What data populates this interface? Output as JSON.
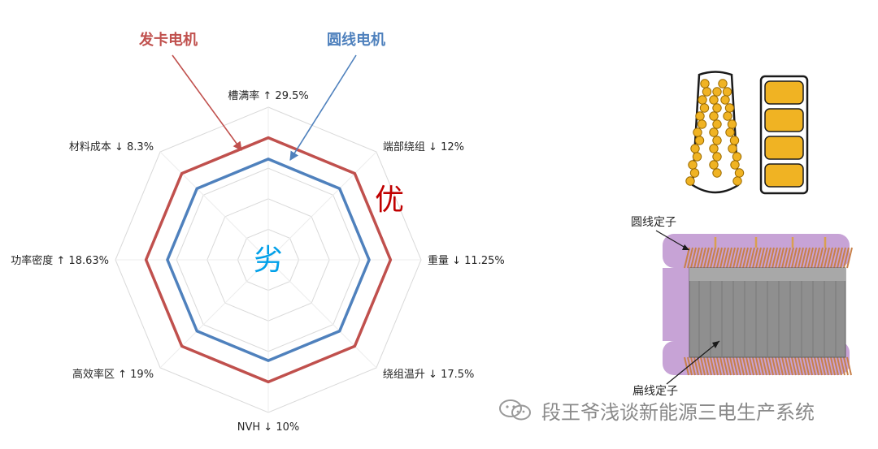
{
  "chart_data": {
    "type": "radar",
    "axes": [
      {
        "label": "槽满率 ↑ 29.5%"
      },
      {
        "label": "端部绕组 ↓ 12%"
      },
      {
        "label": "重量 ↓ 11.25%"
      },
      {
        "label": "绕组温升 ↓ 17.5%"
      },
      {
        "label": "NVH ↓ 10%"
      },
      {
        "label": "高效率区 ↑ 19%"
      },
      {
        "label": "功率密度 ↑ 18.63%"
      },
      {
        "label": "材料成本 ↓ 8.3%"
      }
    ],
    "rings": 5,
    "range": [
      0,
      5
    ],
    "series": [
      {
        "name": "发卡电机",
        "color": "#c0504d",
        "values": [
          4.0,
          4.0,
          4.0,
          4.0,
          4.0,
          4.0,
          4.0,
          4.0
        ]
      },
      {
        "name": "圆线电机",
        "color": "#4f81bd",
        "values": [
          3.3,
          3.3,
          3.3,
          3.3,
          3.3,
          3.3,
          3.3,
          3.3
        ]
      }
    ],
    "annotations": {
      "outer": "优",
      "inner": "劣"
    },
    "colors": {
      "outer": "#c00000",
      "inner": "#00a0e9",
      "grid": "#d9d9d9",
      "label": "#262626"
    }
  },
  "illustration": {
    "round_wire_stator_label": "圆线定子",
    "flat_wire_stator_label": "扁线定子",
    "colors": {
      "wire": "#f0b323",
      "slot_outline": "#1a1a1a",
      "winding_end": "#c7a3d6",
      "core": "#8f8f8f",
      "copper": "#c8804a"
    }
  },
  "watermark": {
    "text": "段王爷浅谈新能源三电生产系统",
    "icon": "wechat-icon"
  }
}
